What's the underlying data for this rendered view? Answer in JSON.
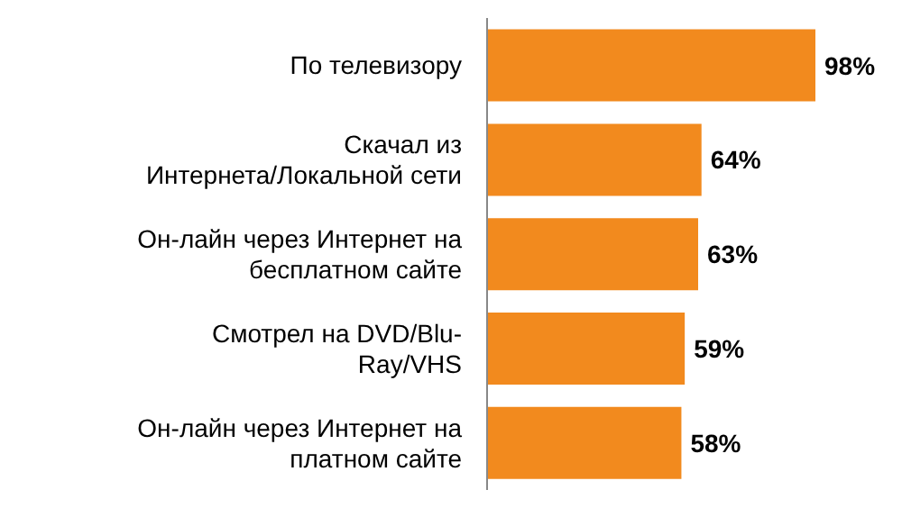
{
  "chart_data": {
    "type": "bar",
    "orientation": "horizontal",
    "categories": [
      "По телевизору",
      "Скачал из Интернета/Локальной сети",
      "Он-лайн через Интернет на бесплатном сайте",
      "Смотрел на DVD/Blu-Ray/VHS",
      "Он-лайн через Интернет на платном сайте"
    ],
    "values": [
      98,
      64,
      63,
      59,
      58
    ],
    "value_labels": [
      "98%",
      "64%",
      "63%",
      "59%",
      "58%"
    ],
    "color": "#f28a1e",
    "tick_labels": "y"
  }
}
